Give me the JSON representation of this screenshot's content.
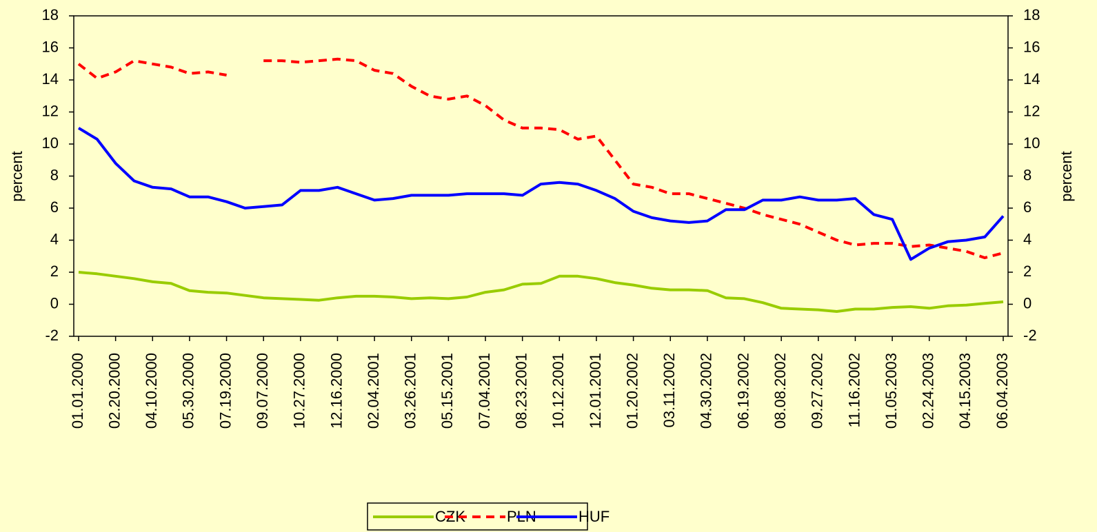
{
  "chart_data": {
    "type": "line",
    "categories": [
      "01.01.2000",
      null,
      "02.20.2000",
      null,
      "04.10.2000",
      null,
      "05.30.2000",
      null,
      "07.19.2000",
      null,
      "09.07.2000",
      null,
      "10.27.2000",
      null,
      "12.16.2000",
      null,
      "02.04.2001",
      null,
      "03.26.2001",
      null,
      "05.15.2001",
      null,
      "07.04.2001",
      null,
      "08.23.2001",
      null,
      "10.12.2001",
      null,
      "12.01.2001",
      null,
      "01.20.2002",
      null,
      "03.11.2002",
      null,
      "04.30.2002",
      null,
      "06.19.2002",
      null,
      "08.08.2002",
      null,
      "09.27.2002",
      null,
      "11.16.2002",
      null,
      "01.05.2003",
      null,
      "02.24.2003",
      null,
      "04.15.2003",
      null,
      "06.04.2003"
    ],
    "series": [
      {
        "name": "CZK",
        "color": "#99cc00",
        "dash": false,
        "values": [
          2.0,
          1.9,
          1.75,
          1.6,
          1.4,
          1.3,
          0.85,
          0.75,
          0.7,
          0.55,
          0.4,
          0.35,
          0.3,
          0.25,
          0.4,
          0.5,
          0.5,
          0.45,
          0.35,
          0.4,
          0.35,
          0.45,
          0.75,
          0.9,
          1.25,
          1.3,
          1.75,
          1.75,
          1.6,
          1.35,
          1.2,
          1.0,
          0.9,
          0.9,
          0.85,
          0.4,
          0.35,
          0.1,
          -0.25,
          -0.3,
          -0.35,
          -0.45,
          -0.3,
          -0.3,
          -0.2,
          -0.15,
          -0.25,
          -0.1,
          -0.05,
          0.05,
          0.15
        ]
      },
      {
        "name": "PLN",
        "color": "#ff0000",
        "dash": true,
        "values": [
          15.0,
          14.1,
          14.5,
          15.2,
          15.0,
          14.8,
          14.4,
          14.5,
          14.3,
          null,
          15.2,
          15.2,
          15.1,
          15.2,
          15.3,
          15.2,
          14.6,
          14.4,
          13.6,
          13.0,
          12.8,
          13.0,
          12.4,
          11.5,
          11.0,
          11.0,
          10.9,
          10.3,
          10.5,
          9.0,
          7.5,
          7.3,
          6.9,
          6.9,
          6.6,
          6.3,
          6.0,
          5.6,
          5.3,
          5.0,
          4.5,
          4.0,
          3.7,
          3.8,
          3.8,
          3.6,
          3.7,
          3.5,
          3.3,
          2.9,
          3.2
        ]
      },
      {
        "name": "HUF",
        "color": "#0000ff",
        "dash": false,
        "values": [
          11.0,
          10.3,
          8.8,
          7.7,
          7.3,
          7.2,
          6.7,
          6.7,
          6.4,
          6.0,
          6.1,
          6.2,
          7.1,
          7.1,
          7.3,
          6.9,
          6.5,
          6.6,
          6.8,
          6.8,
          6.8,
          6.9,
          6.9,
          6.9,
          6.8,
          7.5,
          7.6,
          7.5,
          7.1,
          6.6,
          5.8,
          5.4,
          5.2,
          5.1,
          5.2,
          5.9,
          5.9,
          6.5,
          6.5,
          6.7,
          6.5,
          6.5,
          6.6,
          5.6,
          5.3,
          2.8,
          3.5,
          3.9,
          4.0,
          4.2,
          5.5
        ]
      }
    ],
    "ylabel": "percent",
    "y2label": "percent",
    "ylim": [
      -2,
      18
    ],
    "yticks": [
      -2,
      0,
      2,
      4,
      6,
      8,
      10,
      12,
      14,
      16,
      18
    ],
    "y2lim": [
      -2,
      18
    ],
    "y2ticks": [
      -2,
      0,
      2,
      4,
      6,
      8,
      10,
      12,
      14,
      16,
      18
    ],
    "legend": "bottom"
  }
}
